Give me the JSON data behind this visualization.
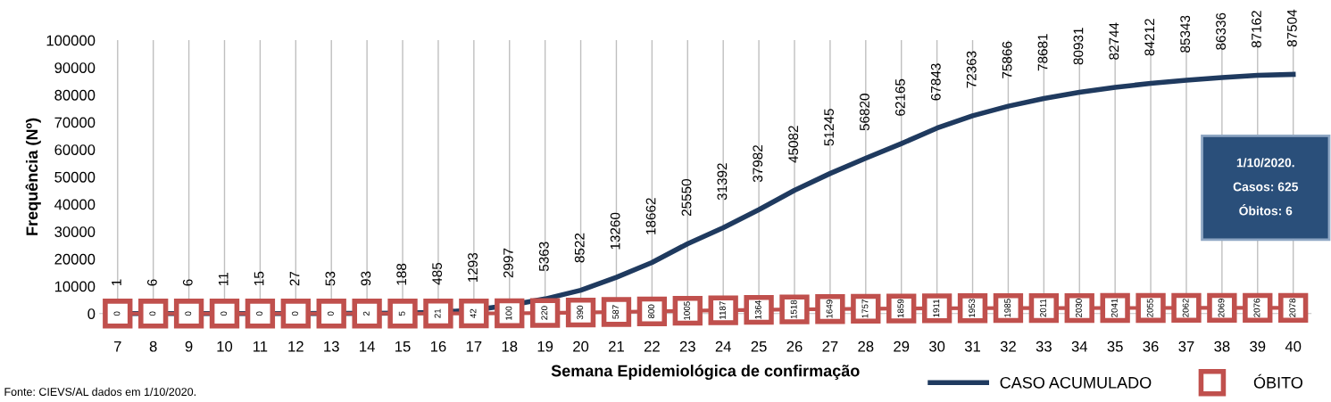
{
  "chart_data": {
    "type": "line",
    "xlabel": "Semana Epidemiológica de confirmação",
    "ylabel": "Frequência (Nº)",
    "categories": [
      "7",
      "8",
      "9",
      "10",
      "11",
      "12",
      "13",
      "14",
      "15",
      "16",
      "17",
      "18",
      "19",
      "20",
      "21",
      "22",
      "23",
      "24",
      "25",
      "26",
      "27",
      "28",
      "29",
      "30",
      "31",
      "32",
      "33",
      "34",
      "35",
      "36",
      "37",
      "38",
      "39",
      "40"
    ],
    "series": [
      {
        "name": "CASO ACUMULADO",
        "color": "#1f3a5f",
        "marker": "none",
        "values": [
          1,
          6,
          6,
          11,
          15,
          27,
          53,
          93,
          188,
          485,
          1293,
          2997,
          5363,
          8522,
          13260,
          18662,
          25550,
          31392,
          37982,
          45082,
          51245,
          56820,
          62165,
          67843,
          72363,
          75866,
          78681,
          80931,
          82744,
          84212,
          85343,
          86336,
          87162,
          87504
        ]
      },
      {
        "name": "ÓBITO",
        "color": "#c0504d",
        "marker": "square",
        "values": [
          0,
          0,
          0,
          0,
          0,
          0,
          0,
          2,
          5,
          21,
          42,
          100,
          220,
          390,
          587,
          800,
          1005,
          1187,
          1364,
          1518,
          1649,
          1757,
          1859,
          1911,
          1953,
          1985,
          2011,
          2030,
          2041,
          2055,
          2062,
          2069,
          2076,
          2078
        ]
      }
    ],
    "ylim": [
      0,
      100000
    ],
    "yticks": [
      0,
      10000,
      20000,
      30000,
      40000,
      50000,
      60000,
      70000,
      80000,
      90000,
      100000
    ],
    "data_labels": true,
    "grid": "x",
    "legend": "bottom right",
    "annotations": [
      "1/10/2020.\nCasos: 625\nÓbitos: 6",
      "Fonte: CIEVS/AL dados em 1/10/2020."
    ]
  }
}
